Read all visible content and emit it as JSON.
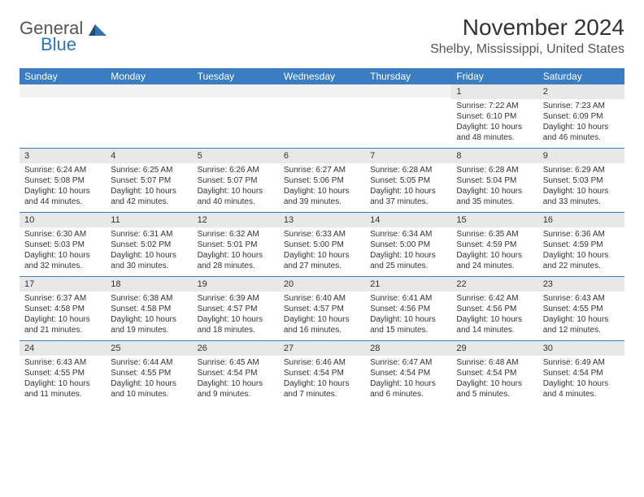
{
  "logo": {
    "text1": "General",
    "text2": "Blue"
  },
  "title": "November 2024",
  "location": "Shelby, Mississippi, United States",
  "colors": {
    "header_bg": "#3a7ec1",
    "header_text": "#ffffff",
    "daynum_bg": "#e8e8e8",
    "blank_bg": "#f2f2f2",
    "row_border": "#3a7ec1",
    "body_text": "#333333",
    "logo_gray": "#555555",
    "logo_blue": "#2e75b6"
  },
  "day_names": [
    "Sunday",
    "Monday",
    "Tuesday",
    "Wednesday",
    "Thursday",
    "Friday",
    "Saturday"
  ],
  "weeks": [
    [
      {
        "blank": true
      },
      {
        "blank": true
      },
      {
        "blank": true
      },
      {
        "blank": true
      },
      {
        "blank": true
      },
      {
        "day": "1",
        "sunrise": "Sunrise: 7:22 AM",
        "sunset": "Sunset: 6:10 PM",
        "daylight": "Daylight: 10 hours and 48 minutes."
      },
      {
        "day": "2",
        "sunrise": "Sunrise: 7:23 AM",
        "sunset": "Sunset: 6:09 PM",
        "daylight": "Daylight: 10 hours and 46 minutes."
      }
    ],
    [
      {
        "day": "3",
        "sunrise": "Sunrise: 6:24 AM",
        "sunset": "Sunset: 5:08 PM",
        "daylight": "Daylight: 10 hours and 44 minutes."
      },
      {
        "day": "4",
        "sunrise": "Sunrise: 6:25 AM",
        "sunset": "Sunset: 5:07 PM",
        "daylight": "Daylight: 10 hours and 42 minutes."
      },
      {
        "day": "5",
        "sunrise": "Sunrise: 6:26 AM",
        "sunset": "Sunset: 5:07 PM",
        "daylight": "Daylight: 10 hours and 40 minutes."
      },
      {
        "day": "6",
        "sunrise": "Sunrise: 6:27 AM",
        "sunset": "Sunset: 5:06 PM",
        "daylight": "Daylight: 10 hours and 39 minutes."
      },
      {
        "day": "7",
        "sunrise": "Sunrise: 6:28 AM",
        "sunset": "Sunset: 5:05 PM",
        "daylight": "Daylight: 10 hours and 37 minutes."
      },
      {
        "day": "8",
        "sunrise": "Sunrise: 6:28 AM",
        "sunset": "Sunset: 5:04 PM",
        "daylight": "Daylight: 10 hours and 35 minutes."
      },
      {
        "day": "9",
        "sunrise": "Sunrise: 6:29 AM",
        "sunset": "Sunset: 5:03 PM",
        "daylight": "Daylight: 10 hours and 33 minutes."
      }
    ],
    [
      {
        "day": "10",
        "sunrise": "Sunrise: 6:30 AM",
        "sunset": "Sunset: 5:03 PM",
        "daylight": "Daylight: 10 hours and 32 minutes."
      },
      {
        "day": "11",
        "sunrise": "Sunrise: 6:31 AM",
        "sunset": "Sunset: 5:02 PM",
        "daylight": "Daylight: 10 hours and 30 minutes."
      },
      {
        "day": "12",
        "sunrise": "Sunrise: 6:32 AM",
        "sunset": "Sunset: 5:01 PM",
        "daylight": "Daylight: 10 hours and 28 minutes."
      },
      {
        "day": "13",
        "sunrise": "Sunrise: 6:33 AM",
        "sunset": "Sunset: 5:00 PM",
        "daylight": "Daylight: 10 hours and 27 minutes."
      },
      {
        "day": "14",
        "sunrise": "Sunrise: 6:34 AM",
        "sunset": "Sunset: 5:00 PM",
        "daylight": "Daylight: 10 hours and 25 minutes."
      },
      {
        "day": "15",
        "sunrise": "Sunrise: 6:35 AM",
        "sunset": "Sunset: 4:59 PM",
        "daylight": "Daylight: 10 hours and 24 minutes."
      },
      {
        "day": "16",
        "sunrise": "Sunrise: 6:36 AM",
        "sunset": "Sunset: 4:59 PM",
        "daylight": "Daylight: 10 hours and 22 minutes."
      }
    ],
    [
      {
        "day": "17",
        "sunrise": "Sunrise: 6:37 AM",
        "sunset": "Sunset: 4:58 PM",
        "daylight": "Daylight: 10 hours and 21 minutes."
      },
      {
        "day": "18",
        "sunrise": "Sunrise: 6:38 AM",
        "sunset": "Sunset: 4:58 PM",
        "daylight": "Daylight: 10 hours and 19 minutes."
      },
      {
        "day": "19",
        "sunrise": "Sunrise: 6:39 AM",
        "sunset": "Sunset: 4:57 PM",
        "daylight": "Daylight: 10 hours and 18 minutes."
      },
      {
        "day": "20",
        "sunrise": "Sunrise: 6:40 AM",
        "sunset": "Sunset: 4:57 PM",
        "daylight": "Daylight: 10 hours and 16 minutes."
      },
      {
        "day": "21",
        "sunrise": "Sunrise: 6:41 AM",
        "sunset": "Sunset: 4:56 PM",
        "daylight": "Daylight: 10 hours and 15 minutes."
      },
      {
        "day": "22",
        "sunrise": "Sunrise: 6:42 AM",
        "sunset": "Sunset: 4:56 PM",
        "daylight": "Daylight: 10 hours and 14 minutes."
      },
      {
        "day": "23",
        "sunrise": "Sunrise: 6:43 AM",
        "sunset": "Sunset: 4:55 PM",
        "daylight": "Daylight: 10 hours and 12 minutes."
      }
    ],
    [
      {
        "day": "24",
        "sunrise": "Sunrise: 6:43 AM",
        "sunset": "Sunset: 4:55 PM",
        "daylight": "Daylight: 10 hours and 11 minutes."
      },
      {
        "day": "25",
        "sunrise": "Sunrise: 6:44 AM",
        "sunset": "Sunset: 4:55 PM",
        "daylight": "Daylight: 10 hours and 10 minutes."
      },
      {
        "day": "26",
        "sunrise": "Sunrise: 6:45 AM",
        "sunset": "Sunset: 4:54 PM",
        "daylight": "Daylight: 10 hours and 9 minutes."
      },
      {
        "day": "27",
        "sunrise": "Sunrise: 6:46 AM",
        "sunset": "Sunset: 4:54 PM",
        "daylight": "Daylight: 10 hours and 7 minutes."
      },
      {
        "day": "28",
        "sunrise": "Sunrise: 6:47 AM",
        "sunset": "Sunset: 4:54 PM",
        "daylight": "Daylight: 10 hours and 6 minutes."
      },
      {
        "day": "29",
        "sunrise": "Sunrise: 6:48 AM",
        "sunset": "Sunset: 4:54 PM",
        "daylight": "Daylight: 10 hours and 5 minutes."
      },
      {
        "day": "30",
        "sunrise": "Sunrise: 6:49 AM",
        "sunset": "Sunset: 4:54 PM",
        "daylight": "Daylight: 10 hours and 4 minutes."
      }
    ]
  ]
}
